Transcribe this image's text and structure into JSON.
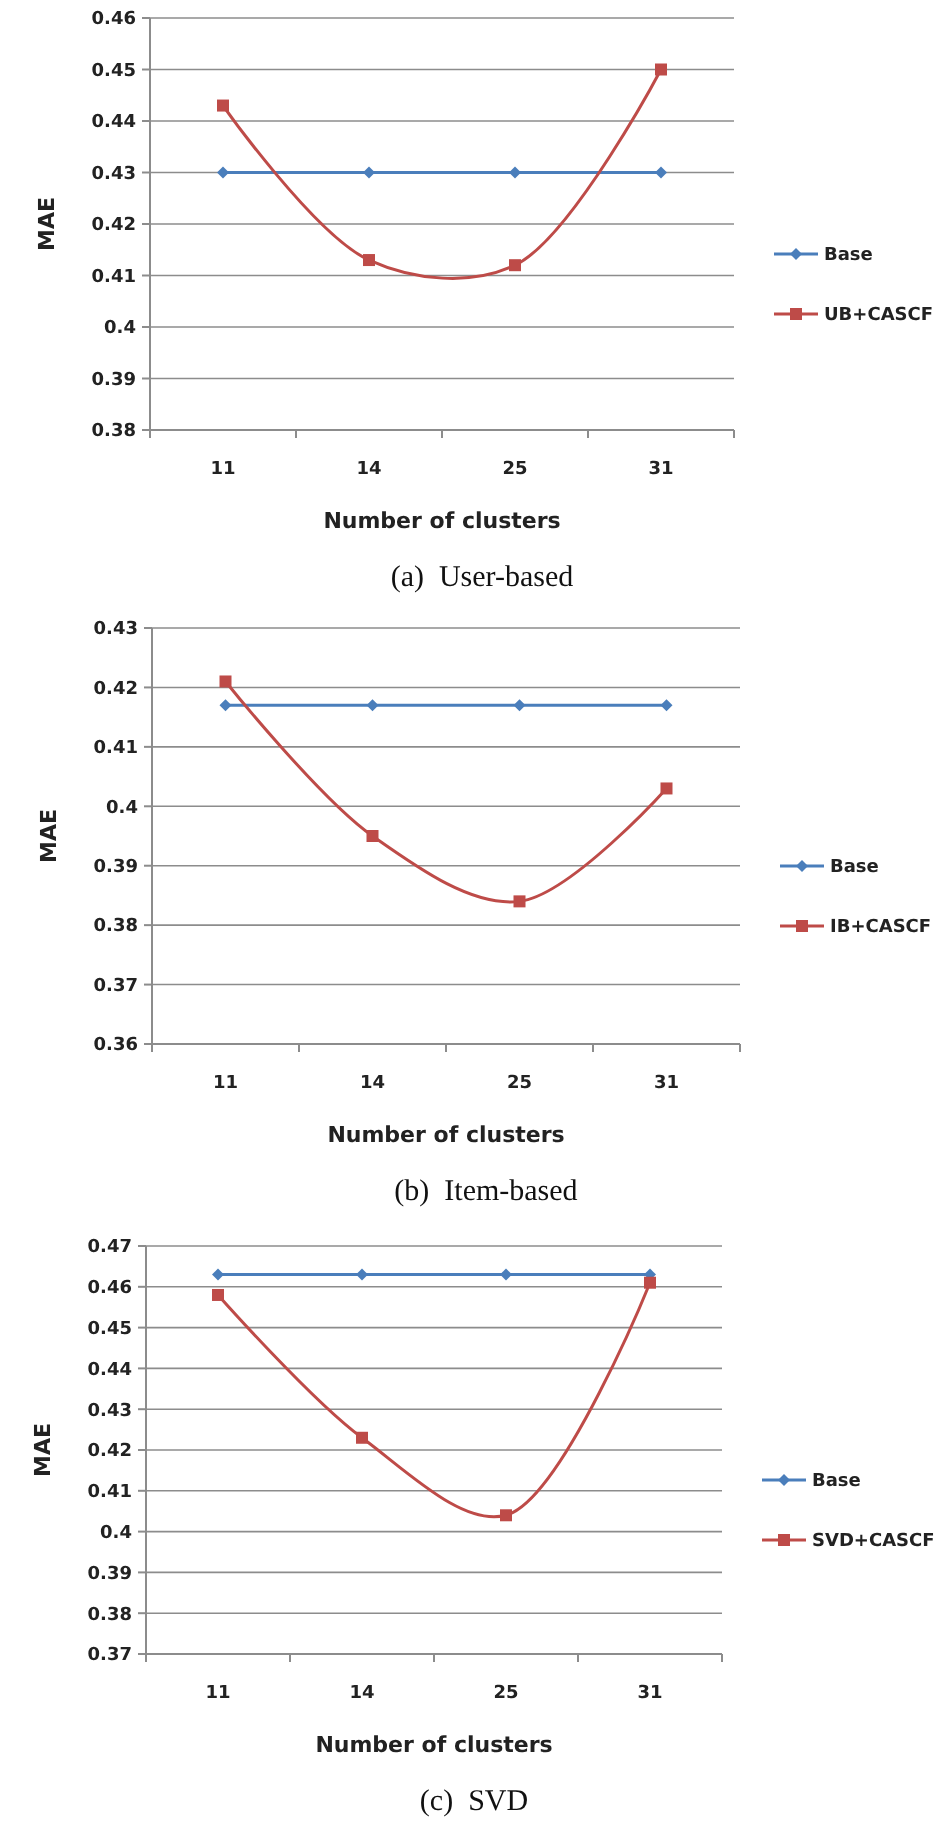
{
  "chart_data": [
    {
      "type": "line",
      "xlabel": "Number of clusters",
      "ylabel": "MAE",
      "categories": [
        "11",
        "14",
        "25",
        "31"
      ],
      "ylim": [
        0.38,
        0.46
      ],
      "yticks": [
        0.38,
        0.39,
        0.4,
        0.41,
        0.42,
        0.43,
        0.44,
        0.45,
        0.46
      ],
      "grid": "y",
      "legend": "right",
      "annotations": [
        "(a)  User-based"
      ],
      "series": [
        {
          "name": "Base",
          "color": "#4a7ebb",
          "marker": "diamond",
          "values": [
            0.43,
            0.43,
            0.43,
            0.43
          ]
        },
        {
          "name": "UB+CASCF",
          "color": "#be4b48",
          "marker": "square",
          "values": [
            0.443,
            0.413,
            0.412,
            0.45
          ]
        }
      ]
    },
    {
      "type": "line",
      "xlabel": "Number of clusters",
      "ylabel": "MAE",
      "categories": [
        "11",
        "14",
        "25",
        "31"
      ],
      "ylim": [
        0.36,
        0.43
      ],
      "yticks": [
        0.36,
        0.37,
        0.38,
        0.39,
        0.4,
        0.41,
        0.42,
        0.43
      ],
      "grid": "y",
      "legend": "right",
      "annotations": [
        "(b)  Item-based"
      ],
      "series": [
        {
          "name": "Base",
          "color": "#4a7ebb",
          "marker": "diamond",
          "values": [
            0.417,
            0.417,
            0.417,
            0.417
          ]
        },
        {
          "name": "IB+CASCF",
          "color": "#be4b48",
          "marker": "square",
          "values": [
            0.421,
            0.395,
            0.384,
            0.403
          ]
        }
      ]
    },
    {
      "type": "line",
      "xlabel": "Number of clusters",
      "ylabel": "MAE",
      "categories": [
        "11",
        "14",
        "25",
        "31"
      ],
      "ylim": [
        0.37,
        0.47
      ],
      "yticks": [
        0.37,
        0.38,
        0.39,
        0.4,
        0.41,
        0.42,
        0.43,
        0.44,
        0.45,
        0.46,
        0.47
      ],
      "grid": "y",
      "legend": "right",
      "annotations": [
        "(c)  SVD"
      ],
      "series": [
        {
          "name": "Base",
          "color": "#4a7ebb",
          "marker": "diamond",
          "values": [
            0.463,
            0.463,
            0.463,
            0.463
          ]
        },
        {
          "name": "SVD+CASCF",
          "color": "#be4b48",
          "marker": "square",
          "values": [
            0.458,
            0.423,
            0.404,
            0.461
          ]
        }
      ]
    }
  ]
}
